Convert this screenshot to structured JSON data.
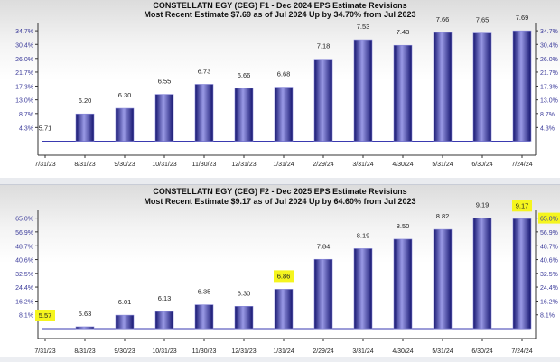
{
  "chart_data": [
    {
      "type": "bar",
      "title": "CONSTELLATN EGY (CEG) F1 - Dec 2024 EPS Estimate Revisions",
      "subtitle": "Most Recent Estimate $7.69 as of Jul 2024 Up by 34.70% from Jul 2023",
      "categories": [
        "7/31/23",
        "8/31/23",
        "9/30/23",
        "10/31/23",
        "11/30/23",
        "12/31/23",
        "1/31/24",
        "2/29/24",
        "3/31/24",
        "4/30/24",
        "5/31/24",
        "6/30/24",
        "7/24/24"
      ],
      "values": [
        5.71,
        6.2,
        6.3,
        6.55,
        6.73,
        6.66,
        6.68,
        7.18,
        7.53,
        7.43,
        7.66,
        7.65,
        7.69
      ],
      "value_labels": [
        "5.71",
        "6.20",
        "6.30",
        "6.55",
        "6.73",
        "6.66",
        "6.68",
        "7.18",
        "7.53",
        "7.43",
        "7.66",
        "7.65",
        "7.69"
      ],
      "y_ticks": [
        "4.3%",
        "8.7%",
        "13.0%",
        "17.3%",
        "21.7%",
        "26.0%",
        "30.4%",
        "34.7%"
      ],
      "y_tick_values": [
        4.3,
        8.7,
        13.0,
        17.3,
        21.7,
        26.0,
        30.4,
        34.7
      ],
      "highlighted_labels": [],
      "grid": false
    },
    {
      "type": "bar",
      "title": "CONSTELLATN EGY (CEG) F2 - Dec 2025 EPS Estimate Revisions",
      "subtitle": "Most Recent Estimate $9.17 as of Jul 2024 Up by 64.60% from Jul 2023",
      "categories": [
        "7/31/23",
        "8/31/23",
        "9/30/23",
        "10/31/23",
        "11/30/23",
        "12/31/23",
        "1/31/24",
        "2/29/24",
        "3/31/24",
        "4/30/24",
        "5/31/24",
        "6/30/24",
        "7/24/24"
      ],
      "values": [
        5.57,
        5.63,
        6.01,
        6.13,
        6.35,
        6.3,
        6.86,
        7.84,
        8.19,
        8.5,
        8.82,
        9.19,
        9.17
      ],
      "value_labels": [
        "5.57",
        "5.63",
        "6.01",
        "6.13",
        "6.35",
        "6.30",
        "6.86",
        "7.84",
        "8.19",
        "8.50",
        "8.82",
        "9.19",
        "9.17"
      ],
      "y_ticks": [
        "8.1%",
        "16.2%",
        "24.4%",
        "32.5%",
        "40.6%",
        "48.7%",
        "56.9%",
        "65.0%"
      ],
      "y_tick_values": [
        8.1,
        16.2,
        24.4,
        32.5,
        40.6,
        48.7,
        56.9,
        65.0
      ],
      "highlighted_labels": [
        0,
        6,
        12
      ],
      "highlighted_ticks": [
        "65.0%"
      ],
      "grid": false
    }
  ],
  "colors": {
    "highlight": "#f5f51e",
    "tick_text": "#3a3a9a",
    "bar_dark": "#14146e",
    "bar_light": "#9a9ae6"
  }
}
